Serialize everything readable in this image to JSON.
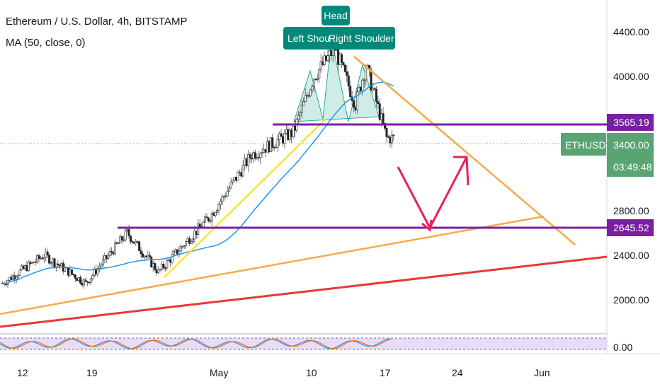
{
  "header": {
    "title": "Ethereum / U.S. Dollar, 4h, BITSTAMP",
    "study": "MA (50, close, 0)"
  },
  "colors": {
    "bull": "#26a69a",
    "bear": "#ef5350",
    "ma": "#2196f3",
    "level": "#7b1fa2",
    "trend_orange": "#f7a94b",
    "trend_yellow": "#ffe135",
    "trend_red": "#e53935",
    "arrow": "#e91e63",
    "pattern_box": "#00897b",
    "ethusd_badge": "#5aa473",
    "pattern_fill": "#a7dfd2"
  },
  "chart_data": {
    "type": "candlestick",
    "symbol": "ETHUSD",
    "timeframe": "4h",
    "y_ticks": [
      "4400.00",
      "4000.00",
      "3400.00",
      "2800.00",
      "2400.00",
      "2000.00"
    ],
    "x_ticks": [
      "12",
      "19",
      "May",
      "10",
      "17",
      "24",
      "Jun"
    ],
    "current_price": "3400.00",
    "countdown": "03:49:48",
    "price_label": "ETHUSD",
    "levels": [
      {
        "value": 3565.19,
        "label": "3565.19"
      },
      {
        "value": 2645.52,
        "label": "2645.52"
      }
    ],
    "pattern_labels": {
      "head": "Head",
      "left": "Left Shou",
      "right": "Right Shoulder"
    },
    "approx_close_path": [
      {
        "date": "2021-04-10",
        "close": 2150
      },
      {
        "date": "2021-04-14",
        "close": 2400
      },
      {
        "date": "2021-04-18",
        "close": 2150
      },
      {
        "date": "2021-04-22",
        "close": 2600
      },
      {
        "date": "2021-04-25",
        "close": 2250
      },
      {
        "date": "2021-04-30",
        "close": 2750
      },
      {
        "date": "2021-05-04",
        "close": 3300
      },
      {
        "date": "2021-05-08",
        "close": 3500
      },
      {
        "date": "2021-05-10",
        "close": 4000
      },
      {
        "date": "2021-05-12",
        "close": 4250
      },
      {
        "date": "2021-05-14",
        "close": 3750
      },
      {
        "date": "2021-05-15",
        "close": 4100
      },
      {
        "date": "2021-05-17",
        "close": 3450
      }
    ],
    "oscillator": {
      "zero_label": "0.00"
    }
  }
}
